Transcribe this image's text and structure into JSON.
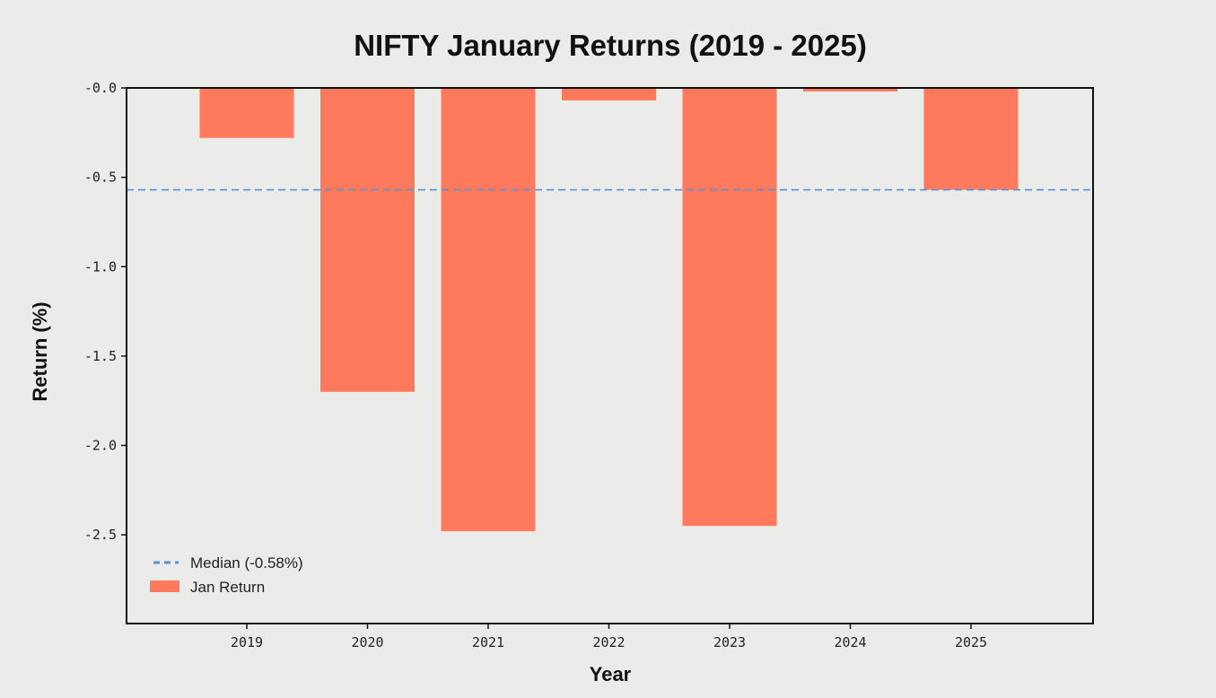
{
  "chart_data": {
    "type": "bar",
    "title": "NIFTY January Returns (2019 - 2025)",
    "xlabel": "Year",
    "ylabel": "Return (%)",
    "categories": [
      "2019",
      "2020",
      "2021",
      "2022",
      "2023",
      "2024",
      "2025"
    ],
    "series": [
      {
        "name": "Jan Return",
        "values": [
          -0.28,
          -1.7,
          -2.48,
          -0.07,
          -2.45,
          -0.02,
          -0.57
        ],
        "color": "#ff7a5c"
      }
    ],
    "reference_line": {
      "label": "Median (-0.58%)",
      "value": -0.57,
      "color": "#5b8fd9",
      "style": "dashed"
    },
    "ylim": [
      -3.0,
      0.0
    ],
    "yticks": [
      "-0.0",
      "-0.5",
      "-1.0",
      "-1.5",
      "-2.0",
      "-2.5"
    ],
    "ytick_values": [
      0.0,
      -0.5,
      -1.0,
      -1.5,
      -2.0,
      -2.5
    ],
    "grid": false,
    "legend_position": "bottom-left"
  }
}
